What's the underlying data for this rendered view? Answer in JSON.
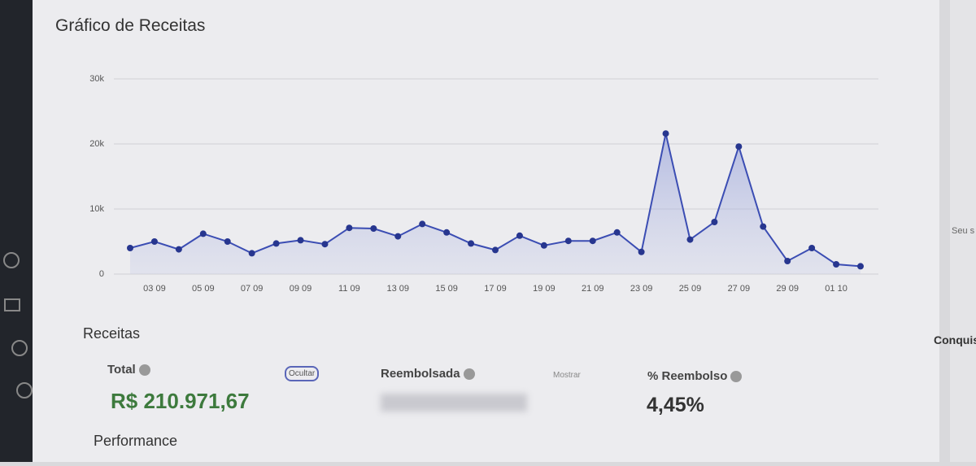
{
  "header": {
    "title": "Gráfico de Receitas"
  },
  "chart_data": {
    "type": "line",
    "categories": [
      null,
      "03 09",
      null,
      "05 09",
      null,
      "07 09",
      null,
      "09 09",
      null,
      "11 09",
      null,
      "13 09",
      null,
      "15 09",
      null,
      "17 09",
      null,
      "19 09",
      null,
      "21 09",
      null,
      "23 09",
      null,
      "25 09",
      null,
      "27 09",
      null,
      "29 09",
      null,
      "01 10",
      null
    ],
    "series": [
      {
        "color": "#3b4db3",
        "values": [
          4000,
          5000,
          3800,
          6200,
          5000,
          3200,
          4700,
          5200,
          4600,
          7100,
          7000,
          5800,
          7700,
          6400,
          4700,
          3700,
          5900,
          4400,
          5100,
          5100,
          6400,
          3400,
          21600,
          5300,
          8000,
          19600,
          7300,
          2000,
          4000,
          1500,
          1200
        ]
      }
    ],
    "ylim": [
      0,
      30000
    ],
    "yticks": [
      0,
      {
        "value": 10000,
        "label": "10k"
      },
      {
        "value": 20000,
        "label": "20k"
      },
      {
        "value": 30000,
        "label": "30k"
      }
    ],
    "grid": true
  },
  "summary": {
    "title": "Receitas",
    "total_label": "Total",
    "hide_button": "Ocultar",
    "total_value": "R$ 210.971,67",
    "refunded_label": "Reembolsada",
    "show_button": "Mostrar",
    "refund_pct_label": "% Reembolso",
    "refund_pct_value": "4,45%"
  },
  "performance": {
    "title": "Performance"
  },
  "side": {
    "achievements": "Conquis",
    "partial": "Seu s"
  }
}
